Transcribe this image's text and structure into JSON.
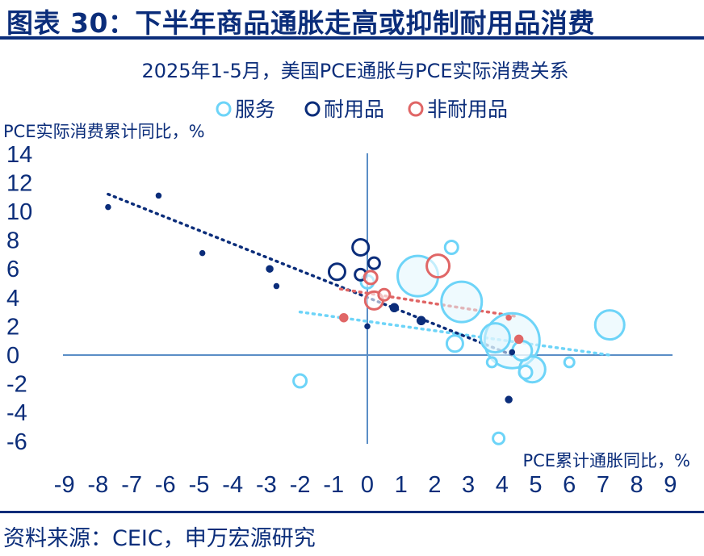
{
  "header": {
    "title": "图表 30：下半年商品通胀走高或抑制耐用品消费"
  },
  "source": "资料来源：CEIC，申万宏源研究",
  "colors": {
    "services": "#6dd4f8",
    "durable": "#0b2d7a",
    "nondurable": "#e06666",
    "axis": "#5a8ec6"
  },
  "chart_data": {
    "type": "scatter",
    "title": "2025年1-5月，美国PCE通胀与PCE实际消费关系",
    "xlabel": "PCE累计通胀同比，%",
    "ylabel": "PCE实际消费累计同比，%",
    "xlim": [
      -9,
      9
    ],
    "ylim": [
      -6,
      14
    ],
    "xticks": [
      "-9",
      "-8",
      "-7",
      "-6",
      "-5",
      "-4",
      "-3",
      "-2",
      "-1",
      "0",
      "1",
      "2",
      "3",
      "4",
      "5",
      "6",
      "7",
      "8",
      "9"
    ],
    "yticks": [
      "14",
      "12",
      "10",
      "8",
      "6",
      "4",
      "2",
      "0",
      "-2",
      "-4",
      "-6"
    ],
    "grid": false,
    "legend_position": "top-center",
    "series": [
      {
        "name": "服务",
        "points": [
          {
            "x": 4.3,
            "y": 1.0,
            "size": 34
          },
          {
            "x": 1.5,
            "y": 5.5,
            "size": 25
          },
          {
            "x": 2.8,
            "y": 3.7,
            "size": 25
          },
          {
            "x": 7.2,
            "y": 2.1,
            "size": 18
          },
          {
            "x": 3.8,
            "y": 1.2,
            "size": 18
          },
          {
            "x": 4.9,
            "y": -1.0,
            "size": 16
          },
          {
            "x": 4.6,
            "y": 0.3,
            "size": 12
          },
          {
            "x": 2.6,
            "y": 0.8,
            "size": 10
          },
          {
            "x": 2.5,
            "y": 7.5,
            "size": 8
          },
          {
            "x": 4.7,
            "y": -1.2,
            "size": 8
          },
          {
            "x": -2.0,
            "y": -1.8,
            "size": 8
          },
          {
            "x": 3.9,
            "y": -5.8,
            "size": 7
          },
          {
            "x": 6.0,
            "y": -0.5,
            "size": 6
          },
          {
            "x": 3.7,
            "y": -0.5,
            "size": 6
          },
          {
            "x": 0.0,
            "y": 5.1,
            "size": 8
          }
        ]
      },
      {
        "name": "耐用品",
        "points": [
          {
            "x": -0.9,
            "y": 5.8,
            "size": 10
          },
          {
            "x": -0.2,
            "y": 7.5,
            "size": 10
          },
          {
            "x": -0.2,
            "y": 5.6,
            "size": 7
          },
          {
            "x": 0.2,
            "y": 6.4,
            "size": 7
          },
          {
            "x": 0.8,
            "y": 3.3,
            "size": 5
          },
          {
            "x": 1.6,
            "y": 2.4,
            "size": 5
          },
          {
            "x": 0.0,
            "y": 2.0,
            "size": 3
          },
          {
            "x": -2.9,
            "y": 6.0,
            "size": 4
          },
          {
            "x": -2.7,
            "y": 4.8,
            "size": 3
          },
          {
            "x": -4.9,
            "y": 7.1,
            "size": 3
          },
          {
            "x": -6.2,
            "y": 11.1,
            "size": 3
          },
          {
            "x": -7.7,
            "y": 10.3,
            "size": 3
          },
          {
            "x": 4.2,
            "y": -3.1,
            "size": 4
          },
          {
            "x": 4.3,
            "y": 0.2,
            "size": 3
          }
        ]
      },
      {
        "name": "非耐用品",
        "points": [
          {
            "x": 2.1,
            "y": 6.2,
            "size": 14
          },
          {
            "x": 0.2,
            "y": 3.8,
            "size": 11
          },
          {
            "x": 0.1,
            "y": 5.4,
            "size": 8
          },
          {
            "x": 0.5,
            "y": 4.2,
            "size": 7
          },
          {
            "x": -0.7,
            "y": 2.6,
            "size": 5
          },
          {
            "x": 4.5,
            "y": 1.1,
            "size": 5
          },
          {
            "x": 4.2,
            "y": 2.6,
            "size": 3
          }
        ]
      }
    ],
    "trendlines": [
      {
        "series": "服务",
        "x": [
          -2.0,
          7.2
        ],
        "y": [
          3.0,
          0.0
        ]
      },
      {
        "series": "耐用品",
        "x": [
          -7.7,
          4.3
        ],
        "y": [
          11.2,
          0.0
        ]
      },
      {
        "series": "非耐用品",
        "x": [
          -0.8,
          4.4
        ],
        "y": [
          4.6,
          2.7
        ]
      }
    ]
  }
}
